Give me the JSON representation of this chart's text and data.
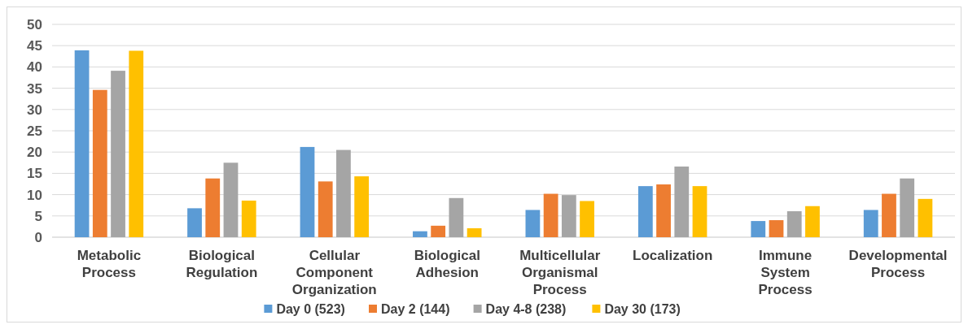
{
  "chart_data": {
    "type": "bar",
    "categories": [
      "Metabolic Process",
      "Biological Regulation",
      "Cellular Component Organization",
      "Biological Adhesion",
      "Multicellular Organismal Process",
      "Localization",
      "Immune System Process",
      "Developmental Process"
    ],
    "series": [
      {
        "name": "Day 0 (523)",
        "color": "#5b9bd5",
        "values": [
          43.9,
          6.8,
          21.2,
          1.4,
          6.4,
          12.0,
          3.8,
          6.4
        ]
      },
      {
        "name": "Day 2 (144)",
        "color": "#ed7d31",
        "values": [
          34.6,
          13.8,
          13.1,
          2.7,
          10.2,
          12.4,
          4.0,
          10.2
        ]
      },
      {
        "name": "Day 4-8 (238)",
        "color": "#a5a5a5",
        "values": [
          39.1,
          17.5,
          20.5,
          9.2,
          9.9,
          16.6,
          6.1,
          13.8
        ]
      },
      {
        "name": "Day 30 (173)",
        "color": "#ffc000",
        "values": [
          43.8,
          8.6,
          14.3,
          2.1,
          8.5,
          12.0,
          7.3,
          9.0
        ]
      }
    ],
    "ylim": [
      0,
      50
    ],
    "yticks": [
      0,
      5,
      10,
      15,
      20,
      25,
      30,
      35,
      40,
      45,
      50
    ],
    "grid": "y",
    "legend": "bottom"
  }
}
